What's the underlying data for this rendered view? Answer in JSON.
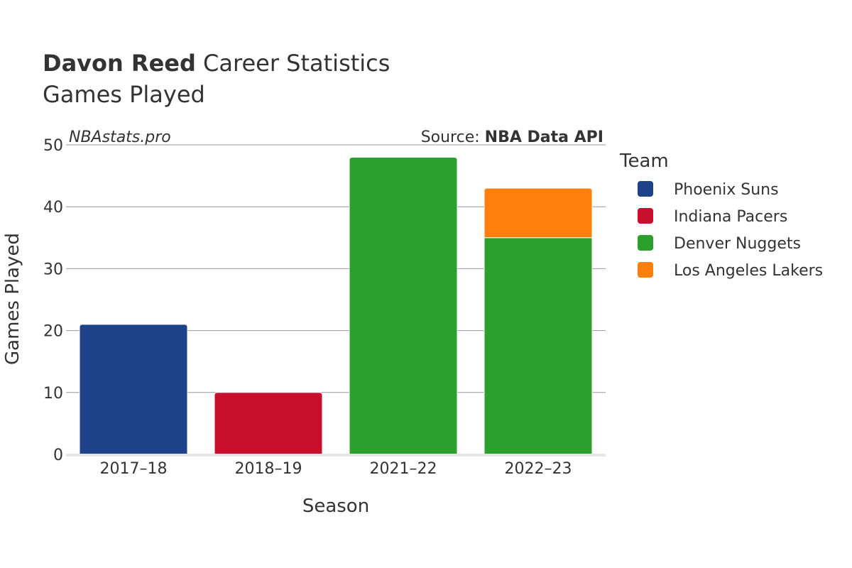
{
  "chart_data": {
    "type": "bar",
    "stacked": true,
    "title": {
      "player": "Davon Reed",
      "rest": " Career Statistics",
      "subtitle": "Games Played"
    },
    "credit": {
      "site": "NBAstats.pro",
      "source_prefix": "Source: ",
      "source_name": "NBA Data API"
    },
    "xlabel": "Season",
    "ylabel": "Games Played",
    "ylim": [
      0,
      50
    ],
    "yticks": [
      0,
      10,
      20,
      30,
      40,
      50
    ],
    "grid": true,
    "categories": [
      "2017–18",
      "2018–19",
      "2021–22",
      "2022–23"
    ],
    "series": [
      {
        "name": "Phoenix Suns",
        "color": "#1d428a",
        "values": [
          21,
          0,
          0,
          0
        ]
      },
      {
        "name": "Indiana Pacers",
        "color": "#c8102e",
        "values": [
          0,
          10,
          0,
          0
        ]
      },
      {
        "name": "Denver Nuggets",
        "color": "#2ca02c",
        "values": [
          0,
          0,
          48,
          35
        ]
      },
      {
        "name": "Los Angeles Lakers",
        "color": "#ff7f0e",
        "values": [
          0,
          0,
          0,
          8
        ]
      }
    ],
    "legend": {
      "title": "Team",
      "placement": "right"
    }
  }
}
